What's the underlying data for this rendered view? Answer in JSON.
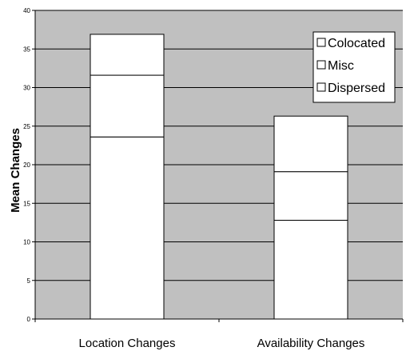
{
  "chart_data": {
    "type": "bar",
    "stacked": true,
    "title": "",
    "xlabel": "",
    "ylabel": "Mean Changes",
    "ylim": [
      0,
      40
    ],
    "yticks": [
      0,
      5,
      10,
      15,
      20,
      25,
      30,
      35,
      40
    ],
    "grid": true,
    "legend_position": "top-right",
    "categories": [
      "Location Changes",
      "Availability Changes"
    ],
    "series": [
      {
        "name": "Dispersed",
        "values": [
          23.6,
          12.8
        ]
      },
      {
        "name": "Misc",
        "values": [
          8.0,
          6.3
        ]
      },
      {
        "name": "Colocated",
        "values": [
          5.3,
          7.2
        ]
      }
    ],
    "legend_order": [
      "Colocated",
      "Misc",
      "Dispersed"
    ],
    "colors": {
      "plot_background": "#c0c0c0",
      "bar_fill": "#ffffff",
      "bar_stroke": "#000000",
      "gridline": "#000000"
    }
  }
}
